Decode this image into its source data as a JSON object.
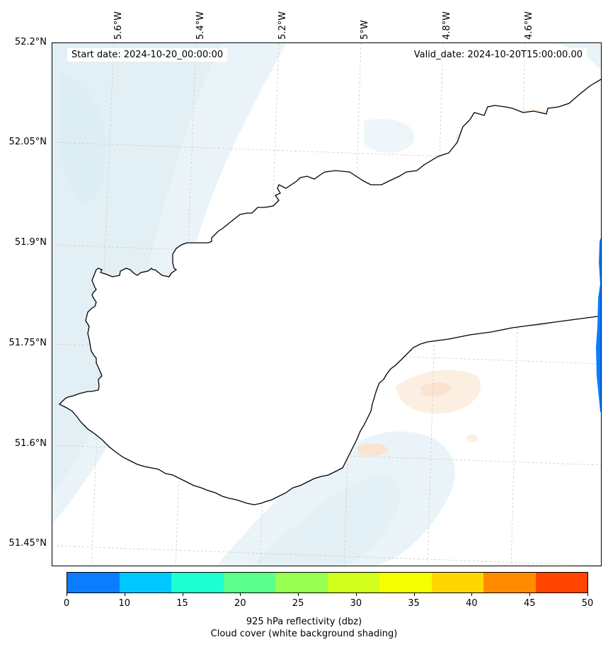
{
  "map": {
    "start_date": "Start date: 2024-10-20_00:00:00",
    "valid_date": "Valid_date: 2024-10-20T15:00:00.00",
    "lon_labels": [
      "5.6°W",
      "5.4°W",
      "5.2°W",
      "5°W",
      "4.8°W",
      "4.6°W"
    ],
    "lat_labels": [
      "52.2°N",
      "52.05°N",
      "51.9°N",
      "51.75°N",
      "51.6°N",
      "51.45°N"
    ]
  },
  "colorbar": {
    "ticks": [
      "0",
      "10",
      "15",
      "20",
      "25",
      "30",
      "35",
      "40",
      "45",
      "50"
    ],
    "colors": [
      "#0a7dff",
      "#00c8ff",
      "#1effd2",
      "#5aff8c",
      "#96ff50",
      "#d2ff1e",
      "#f5ff00",
      "#ffd700",
      "#ff8c00",
      "#ff4500"
    ],
    "label_line1": "925 hPa reflectivity (dbz)",
    "label_line2": "Cloud cover (white background shading)"
  }
}
